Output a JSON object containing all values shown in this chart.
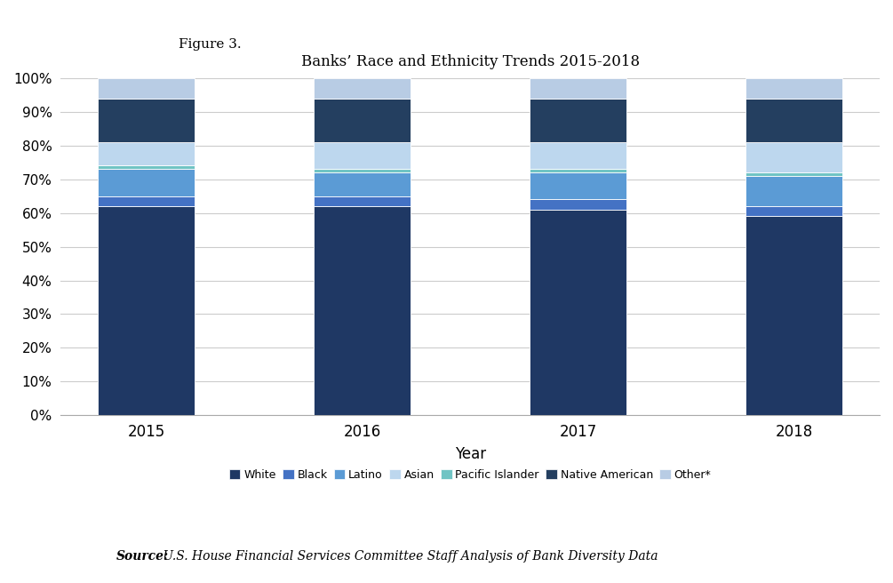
{
  "years": [
    "2015",
    "2016",
    "2017",
    "2018"
  ],
  "categories": [
    "White",
    "Black",
    "Latino",
    "Pacific Islander",
    "Asian",
    "Native American",
    "Other*"
  ],
  "values": {
    "White": [
      62,
      62,
      61,
      59
    ],
    "Black": [
      3,
      3,
      3,
      3
    ],
    "Latino": [
      8,
      7,
      8,
      9
    ],
    "Pacific Islander": [
      1,
      1,
      1,
      1
    ],
    "Asian": [
      7,
      8,
      8,
      9
    ],
    "Native American": [
      13,
      13,
      13,
      13
    ],
    "Other*": [
      6,
      6,
      6,
      6
    ]
  },
  "colors": {
    "White": "#1F3864",
    "Black": "#4472C4",
    "Latino": "#5B9BD5",
    "Pacific Islander": "#70C4C4",
    "Asian": "#BDD7EE",
    "Native American": "#243F60",
    "Other*": "#B8CCE4"
  },
  "legend_order": [
    "White",
    "Black",
    "Latino",
    "Asian",
    "Pacific Islander",
    "Native American",
    "Other*"
  ],
  "legend_colors": {
    "White": "#1F3864",
    "Black": "#4472C4",
    "Latino": "#5B9BD5",
    "Asian": "#BDD7EE",
    "Pacific Islander": "#70C4C4",
    "Native American": "#243F60",
    "Other*": "#B8CCE4"
  },
  "title": "Banks’ Race and Ethnicity Trends 2015-2018",
  "figure_label": "Figure 3.",
  "xlabel": "Year",
  "source_text_bold": "Source:",
  "source_text_italic": " U.S. House Financial Services Committee Staff Analysis of Bank Diversity Data",
  "bar_width": 0.45,
  "ylim": [
    0,
    100
  ]
}
